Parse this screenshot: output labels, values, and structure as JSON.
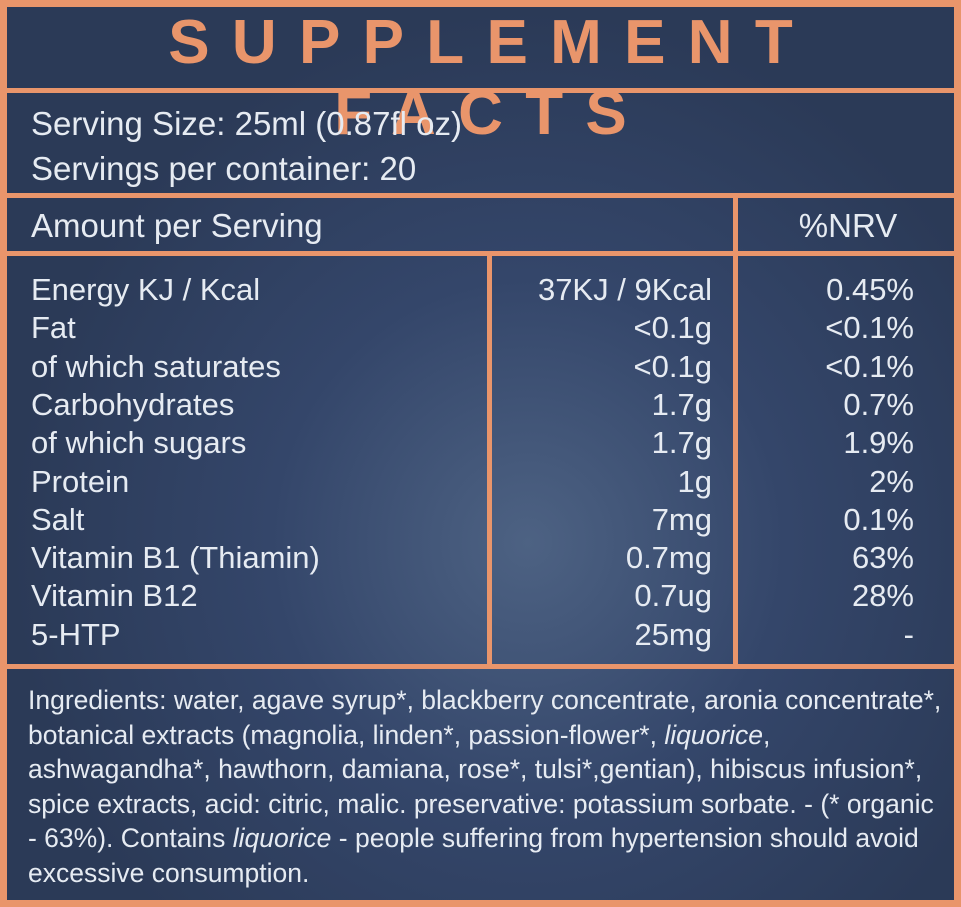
{
  "header": {
    "title": "SUPPLEMENT FACTS"
  },
  "serving": {
    "size": "Serving Size: 25ml (0.87fl oz)",
    "per_container": "Servings per container: 20"
  },
  "table": {
    "header": {
      "amount": "Amount per Serving",
      "nrv": "%NRV"
    },
    "rows": [
      [
        "Energy KJ / Kcal",
        "37KJ / 9Kcal",
        "0.45%"
      ],
      [
        "Fat",
        "<0.1g",
        "<0.1%"
      ],
      [
        "of which saturates",
        "<0.1g",
        "<0.1%"
      ],
      [
        "Carbohydrates",
        "1.7g",
        "0.7%"
      ],
      [
        "of which sugars",
        "1.7g",
        "1.9%"
      ],
      [
        "Protein",
        "1g",
        "2%"
      ],
      [
        "Salt",
        "7mg",
        "0.1%"
      ],
      [
        "Vitamin B1 (Thiamin)",
        "0.7mg",
        "63%"
      ],
      [
        "Vitamin B12",
        "0.7ug",
        "28%"
      ],
      [
        "5-HTP",
        "25mg",
        "-"
      ]
    ]
  },
  "ingredients": [
    "Ingredients: water, agave syrup*, blackberry concentrate, aronia concentrate*, botanical extracts (magnolia, linden*, passion-flower*, ",
    "liquorice",
    ", ashwagandha*, hawthorn, damiana, rose*, tulsi*,gentian), hibiscus infusion*, spice extracts, acid: citric, malic. preservative: potassium sorbate. - (* organic - 63%).   Contains ",
    "liquorice",
    " - people suffering from hypertension should avoid excessive consumption."
  ]
}
